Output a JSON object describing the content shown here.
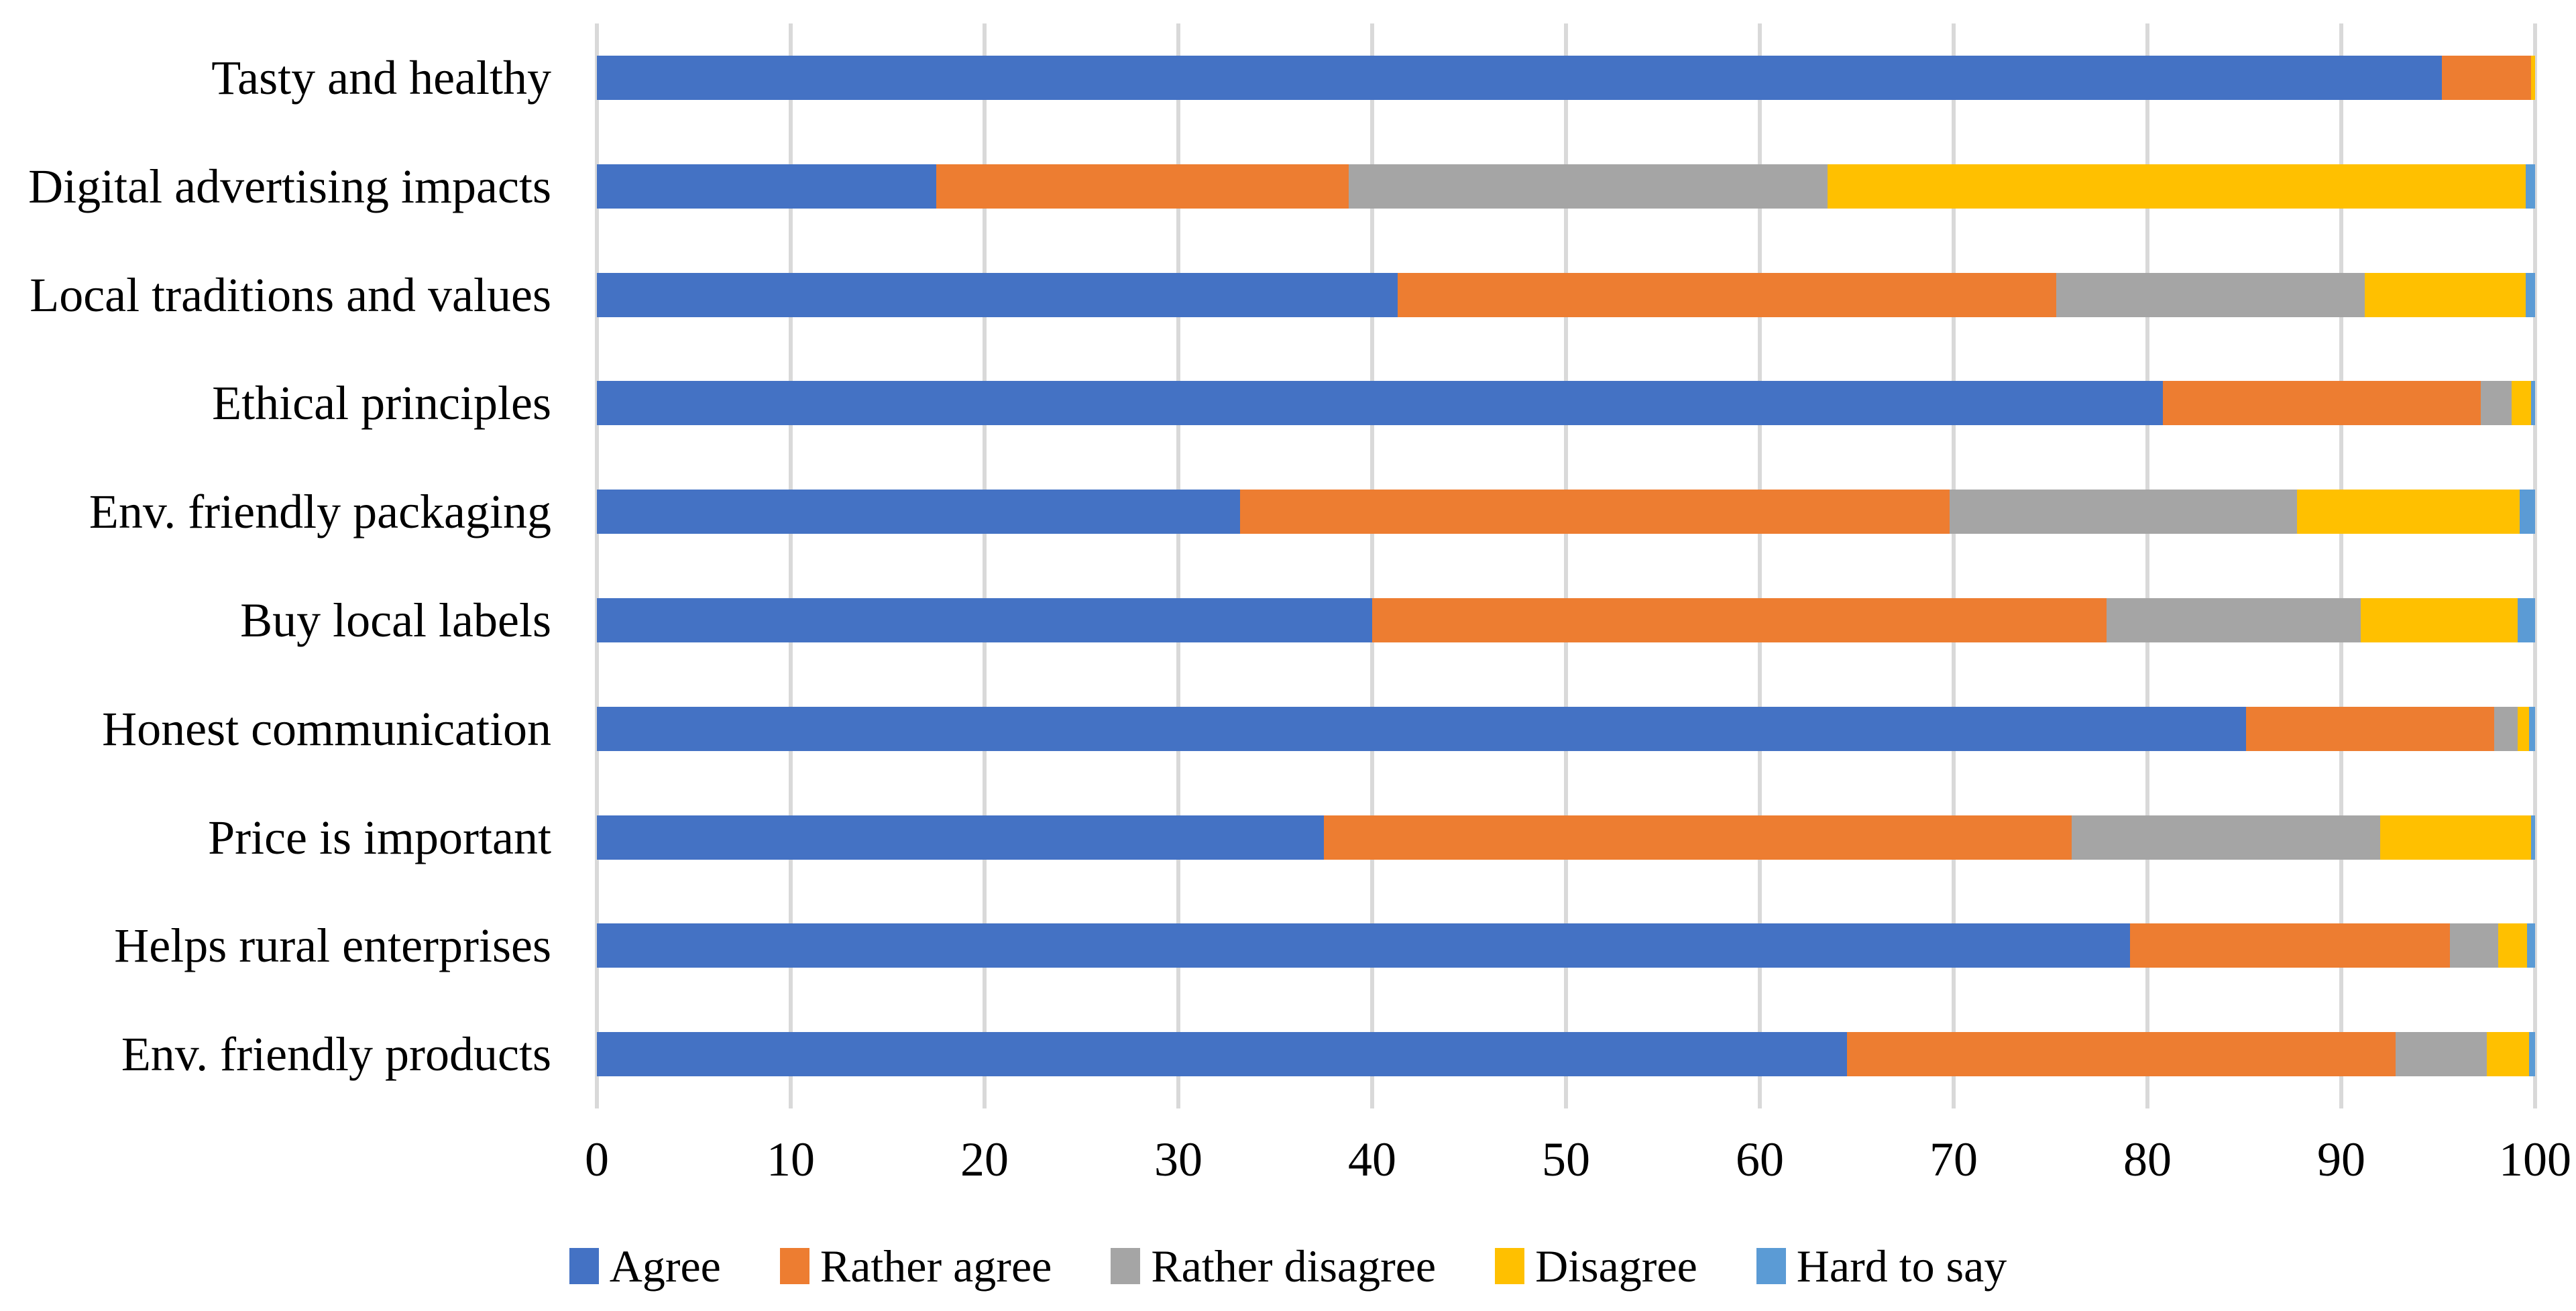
{
  "chart_data": {
    "type": "bar",
    "orientation": "horizontal",
    "stacked": true,
    "unit": "percent",
    "categories": [
      "Tasty and healthy",
      "Digital advertising impacts",
      "Local traditions and values",
      "Ethical principles",
      "Env. friendly packaging",
      "Buy local labels",
      "Honest communication",
      "Price is important",
      "Helps rural enterprises",
      "Env. friendly products"
    ],
    "series": [
      {
        "name": "Agree",
        "color": "#4472C4",
        "values": [
          95.2,
          17.5,
          41.3,
          80.8,
          33.2,
          40.0,
          85.1,
          37.5,
          79.1,
          64.5
        ]
      },
      {
        "name": "Rather agree",
        "color": "#ED7D31",
        "values": [
          4.6,
          21.3,
          34.0,
          16.4,
          36.6,
          37.9,
          12.8,
          38.6,
          16.5,
          28.3
        ]
      },
      {
        "name": "Rather disagree",
        "color": "#A5A5A5",
        "values": [
          0.0,
          24.7,
          15.9,
          1.6,
          17.9,
          13.1,
          1.2,
          15.9,
          2.5,
          4.7
        ]
      },
      {
        "name": "Disagree",
        "color": "#FFC000",
        "values": [
          0.2,
          36.0,
          8.3,
          1.0,
          11.5,
          8.1,
          0.6,
          7.8,
          1.5,
          2.2
        ]
      },
      {
        "name": "Hard to say",
        "color": "#5B9BD5",
        "values": [
          0.0,
          0.5,
          0.5,
          0.2,
          0.8,
          0.9,
          0.3,
          0.2,
          0.4,
          0.3
        ]
      }
    ],
    "x_axis": {
      "min": 0,
      "max": 100,
      "tick_step": 10,
      "ticks": [
        0,
        10,
        20,
        30,
        40,
        50,
        60,
        70,
        80,
        90,
        100
      ]
    },
    "legend": [
      "Agree",
      "Rather agree",
      "Rather disagree",
      "Disagree",
      "Hard to say"
    ],
    "legend_position": "bottom",
    "grid": true,
    "gridline_color": "#D9D9D9",
    "background_color": "#FFFFFF",
    "text_color": "#000000",
    "title": "",
    "xlabel": "",
    "ylabel": ""
  }
}
